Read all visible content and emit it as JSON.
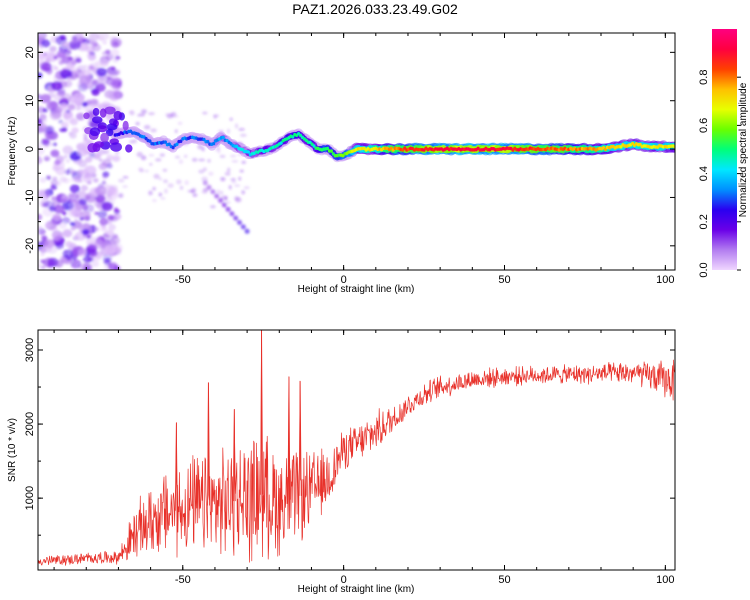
{
  "title": "PAZ1.2026.033.23.49.G02",
  "chart_data": [
    {
      "type": "heatmap",
      "panel": "spectrogram",
      "xlabel": "Height of straight line (km)",
      "ylabel": "Frequency (Hz)",
      "xlim": [
        -95,
        103
      ],
      "ylim": [
        -25,
        24
      ],
      "xticks": [
        -50,
        0,
        50,
        100
      ],
      "yticks": [
        -20,
        -10,
        0,
        10,
        20
      ],
      "colorbar": {
        "label": "Normalized spectral amplitude",
        "range": [
          0,
          1
        ],
        "ticks": [
          "0.0",
          "0.2",
          "0.4",
          "0.6",
          "0.8"
        ],
        "tick_values": [
          0.0,
          0.2,
          0.4,
          0.6,
          0.8
        ],
        "colors": [
          "#f0d6ff",
          "#b27cf0",
          "#6a00e8",
          "#2a00f0",
          "#0090ff",
          "#00e8ff",
          "#00ff7a",
          "#6aff00",
          "#e8ff00",
          "#ffc000",
          "#ff4000",
          "#ff0040",
          "#ff0080"
        ]
      },
      "frequency_trace": {
        "x": [
          -71,
          -68,
          -65,
          -62,
          -59,
          -56,
          -53,
          -50,
          -47,
          -44,
          -41,
          -38,
          -35,
          -32,
          -29,
          -26,
          -23,
          -20,
          -17,
          -14,
          -11,
          -8,
          -5,
          -2,
          1,
          4,
          8,
          12,
          16,
          20,
          30,
          40,
          50,
          60,
          70,
          80,
          85,
          90,
          95,
          100,
          103
        ],
        "y": [
          3,
          3.5,
          3.5,
          2.5,
          1,
          1.5,
          0.5,
          2,
          2.5,
          2,
          1,
          2.5,
          1,
          0,
          -1,
          -0.5,
          0,
          1,
          2.5,
          3,
          1.5,
          0,
          0,
          -1.5,
          -1,
          0,
          0,
          0,
          0,
          0,
          0,
          0,
          0,
          0,
          0,
          0,
          0.5,
          1,
          0.5,
          0.5,
          0.5
        ]
      },
      "amplitude_along_trace": [
        0.22,
        0.3,
        0.3,
        0.3,
        0.3,
        0.3,
        0.3,
        0.3,
        0.3,
        0.3,
        0.32,
        0.35,
        0.35,
        0.4,
        0.4,
        0.45,
        0.45,
        0.45,
        0.5,
        0.5,
        0.45,
        0.5,
        0.55,
        0.55,
        0.6,
        0.7,
        0.7,
        0.75,
        0.8,
        0.85,
        0.9,
        0.9,
        0.9,
        0.85,
        0.8,
        0.75,
        0.7,
        0.7,
        0.7,
        0.7,
        0.7
      ],
      "noise_region_x": [
        -95,
        -70
      ],
      "diagonal_streak": {
        "x": [
          -43,
          -30
        ],
        "y": [
          -7,
          -17
        ]
      }
    },
    {
      "type": "line",
      "panel": "snr",
      "xlabel": "Height of straight line (km)",
      "ylabel": "SNR (10 * v/v)",
      "xlim": [
        -95,
        103
      ],
      "ylim": [
        30,
        3270
      ],
      "xticks": [
        -50,
        0,
        50,
        100
      ],
      "yticks": [
        1000,
        2000,
        3000
      ],
      "color": "#e8312a",
      "envelope": {
        "x": [
          -95,
          -85,
          -75,
          -70,
          -65,
          -60,
          -55,
          -50,
          -45,
          -40,
          -35,
          -30,
          -25,
          -20,
          -15,
          -10,
          -5,
          0,
          5,
          10,
          15,
          20,
          25,
          30,
          35,
          40,
          50,
          60,
          70,
          80,
          90,
          95,
          100,
          103
        ],
        "mean": [
          150,
          170,
          200,
          200,
          500,
          700,
          800,
          850,
          900,
          900,
          950,
          1000,
          1050,
          950,
          1000,
          1100,
          1250,
          1650,
          1750,
          1900,
          2050,
          2250,
          2400,
          2500,
          2550,
          2600,
          2640,
          2660,
          2670,
          2680,
          2690,
          2650,
          2600,
          2600
        ],
        "spread": [
          70,
          70,
          80,
          80,
          350,
          450,
          550,
          600,
          650,
          650,
          700,
          800,
          800,
          700,
          600,
          500,
          400,
          250,
          250,
          250,
          200,
          150,
          150,
          150,
          130,
          130,
          120,
          120,
          120,
          130,
          150,
          180,
          250,
          280
        ]
      },
      "spikes": [
        {
          "x": -52,
          "y": 2020
        },
        {
          "x": -42,
          "y": 2560
        },
        {
          "x": -34,
          "y": 2200
        },
        {
          "x": -25.5,
          "y": 3270
        },
        {
          "x": -17,
          "y": 2640
        },
        {
          "x": -13.5,
          "y": 2580
        }
      ]
    }
  ]
}
